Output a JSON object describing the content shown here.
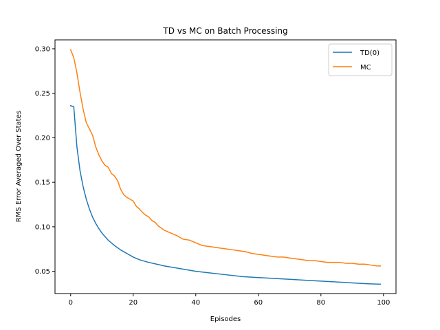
{
  "chart_data": {
    "type": "line",
    "title": "TD vs MC on Batch Processing",
    "xlabel": "Episodes",
    "ylabel": "RMS Error Averaged Over States",
    "xlim": [
      -5,
      104
    ],
    "ylim": [
      0.025,
      0.31
    ],
    "xticks": [
      0,
      20,
      40,
      60,
      80,
      100
    ],
    "xtick_labels": [
      "0",
      "20",
      "40",
      "60",
      "80",
      "100"
    ],
    "yticks": [
      0.05,
      0.1,
      0.15,
      0.2,
      0.25,
      0.3
    ],
    "ytick_labels": [
      "0.05",
      "0.10",
      "0.15",
      "0.20",
      "0.25",
      "0.30"
    ],
    "grid": false,
    "legend_position": "top-right",
    "series": [
      {
        "name": "TD(0)",
        "color": "#1f77b4",
        "x": [
          0,
          1,
          2,
          3,
          4,
          5,
          6,
          7,
          8,
          9,
          10,
          12,
          14,
          16,
          18,
          20,
          22,
          25,
          30,
          35,
          40,
          45,
          50,
          55,
          60,
          65,
          70,
          75,
          80,
          85,
          90,
          95,
          99
        ],
        "values": [
          0.236,
          0.235,
          0.19,
          0.163,
          0.145,
          0.131,
          0.12,
          0.111,
          0.104,
          0.098,
          0.093,
          0.085,
          0.079,
          0.074,
          0.07,
          0.066,
          0.063,
          0.06,
          0.056,
          0.053,
          0.05,
          0.048,
          0.046,
          0.044,
          0.043,
          0.042,
          0.041,
          0.04,
          0.039,
          0.038,
          0.037,
          0.036,
          0.0355
        ]
      },
      {
        "name": "MC",
        "color": "#ff7f0e",
        "x": [
          0,
          1,
          2,
          3,
          4,
          5,
          6,
          7,
          8,
          9,
          10,
          11,
          12,
          13,
          14,
          15,
          16,
          17,
          18,
          19,
          20,
          21,
          22,
          23,
          24,
          25,
          26,
          27,
          28,
          30,
          32,
          34,
          36,
          38,
          40,
          42,
          44,
          46,
          48,
          50,
          52,
          54,
          56,
          58,
          60,
          62,
          64,
          66,
          68,
          70,
          72,
          74,
          76,
          78,
          80,
          82,
          84,
          86,
          88,
          90,
          92,
          94,
          96,
          98,
          99
        ],
        "values": [
          0.299,
          0.29,
          0.273,
          0.251,
          0.232,
          0.217,
          0.21,
          0.203,
          0.19,
          0.181,
          0.174,
          0.169,
          0.167,
          0.16,
          0.157,
          0.152,
          0.142,
          0.136,
          0.133,
          0.131,
          0.129,
          0.123,
          0.12,
          0.116,
          0.113,
          0.111,
          0.107,
          0.105,
          0.101,
          0.096,
          0.093,
          0.09,
          0.086,
          0.085,
          0.082,
          0.079,
          0.078,
          0.077,
          0.076,
          0.075,
          0.074,
          0.073,
          0.072,
          0.07,
          0.069,
          0.068,
          0.067,
          0.066,
          0.066,
          0.065,
          0.064,
          0.063,
          0.062,
          0.062,
          0.061,
          0.06,
          0.06,
          0.06,
          0.059,
          0.059,
          0.058,
          0.058,
          0.057,
          0.056,
          0.056
        ]
      }
    ]
  }
}
